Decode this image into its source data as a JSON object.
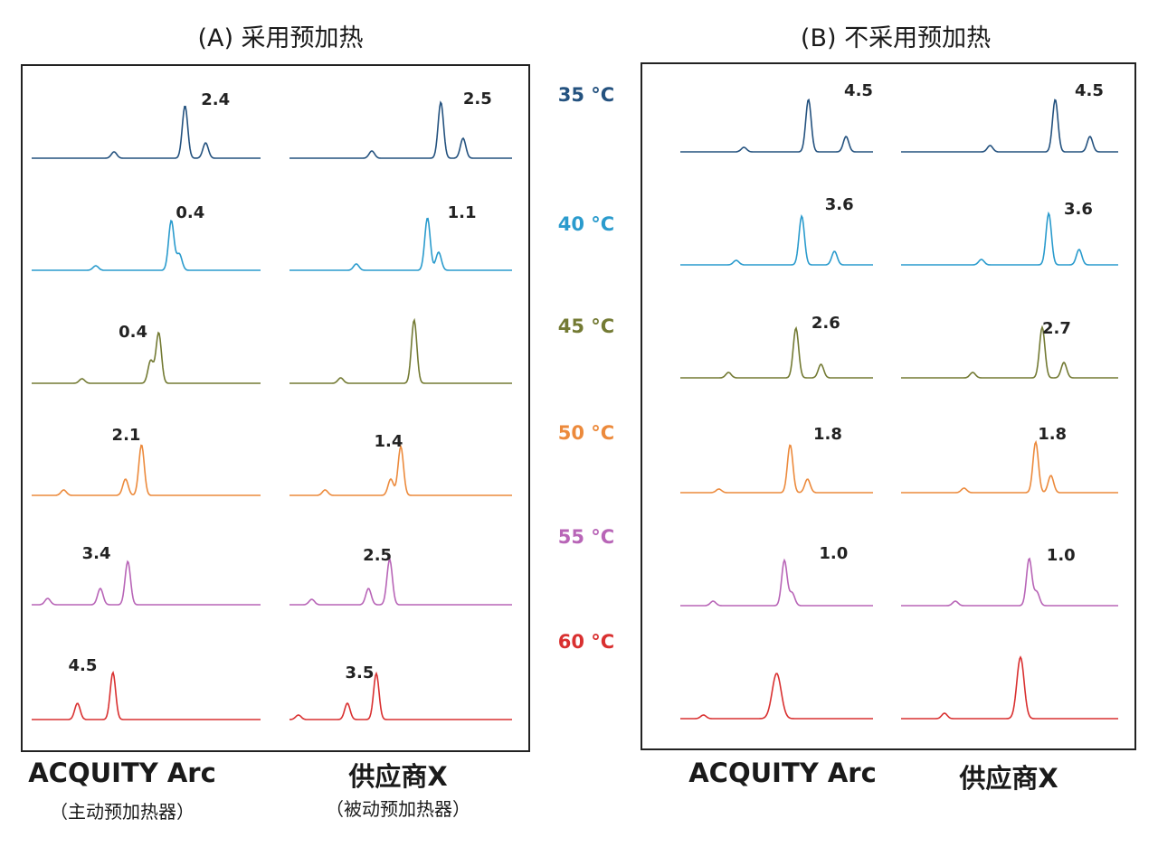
{
  "panels": {
    "A": {
      "title": "(A) 采用预加热"
    },
    "B": {
      "title": "(B) 不采用预加热"
    }
  },
  "columns": [
    {
      "name": "ACQUITY Arc",
      "sub": "（主动预加热器）"
    },
    {
      "name": "供应商X",
      "sub": "（被动预加热器）"
    }
  ],
  "columns_b": [
    {
      "name": "ACQUITY Arc"
    },
    {
      "name": "供应商X"
    }
  ],
  "temperatures": [
    {
      "label": "35 °C",
      "color": "#24527f"
    },
    {
      "label": "40 °C",
      "color": "#2a9bcd"
    },
    {
      "label": "45 °C",
      "color": "#737a33"
    },
    {
      "label": "50 °C",
      "color": "#ec8a3c"
    },
    {
      "label": "55 °C",
      "color": "#b865b7"
    },
    {
      "label": "60 °C",
      "color": "#d93030"
    }
  ],
  "chart_data": {
    "type": "line",
    "description_axis": "chromatogram traces grouped by temperature",
    "resolution_labels": {
      "A_arc": [
        "2.4",
        "0.4",
        "0.4",
        "2.1",
        "3.4",
        "4.5"
      ],
      "A_x": [
        "2.5",
        "1.1",
        "",
        "1.4",
        "2.5",
        "3.5"
      ],
      "B_arc": [
        "4.5",
        "3.6",
        "2.6",
        "1.8",
        "1.0",
        ""
      ],
      "B_x": [
        "4.5",
        "3.6",
        "2.7",
        "1.8",
        "1.0",
        ""
      ]
    }
  }
}
